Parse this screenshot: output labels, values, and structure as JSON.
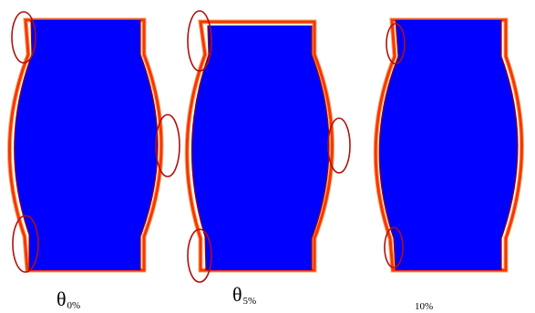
{
  "colors": {
    "fill": "#0000ff",
    "outline_outer": "#e8b070",
    "outline_mid": "#ff3300",
    "outline_inner": "#990000",
    "highlight_ellipse": "#b01010"
  },
  "panels": [
    {
      "label_symbol": "θ",
      "label_subscript": "0%"
    },
    {
      "label_symbol": "θ",
      "label_subscript": "5%"
    },
    {
      "label_symbol": "",
      "label_subscript": "10%"
    }
  ]
}
